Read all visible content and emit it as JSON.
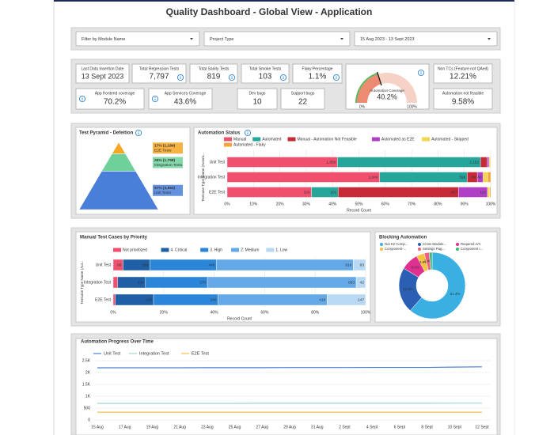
{
  "header": {
    "title": "Quality Dashboard - Global View - Application"
  },
  "filters": [
    "Filter by Module Name",
    "Project Type",
    "15 Aug 2023 - 13 Sept 2023"
  ],
  "kpis": [
    {
      "label": "Last Data Insertion Date",
      "value": "13 Sept 2023"
    },
    {
      "label": "Total Regression Tests",
      "value": "7,797"
    },
    {
      "label": "Total Sanity Tests",
      "value": "819"
    },
    {
      "label": "Total Smoke Tests",
      "value": "103"
    },
    {
      "label": "Flaky Percentage",
      "value": "1.1%"
    },
    {
      "label": "Non TCs (Feature not QAed)",
      "value": "12.21%"
    },
    {
      "label": "App frontend coverage",
      "value": "70.2%"
    },
    {
      "label": "App Services Coverage",
      "value": "43.6%"
    },
    {
      "label": "Dev bugs",
      "value": "10"
    },
    {
      "label": "Support bugs",
      "value": "22"
    },
    {
      "label": "Automation not feasible",
      "value": "9.58%"
    }
  ],
  "chart_data": [
    {
      "type": "gauge",
      "title": "Automation Coverage",
      "value": 40.2,
      "value_label": "40.2%",
      "ylim": [
        0,
        100
      ],
      "ticks": [
        {
          "value": 0,
          "label": "0%"
        },
        {
          "value": 100,
          "label": "100%"
        }
      ],
      "color": "#ec8a72",
      "track_color": "#f6d2c6"
    },
    {
      "type": "pyramid",
      "title": "Test Pyramid - Defeition",
      "categories": [
        "E2E Tests",
        "Integration Tests",
        "Unit Tests"
      ],
      "values": [
        1184,
        1798,
        3964
      ],
      "value_labels": [
        "17% (1,184)",
        "26% (1,798)",
        "57% (3,964)"
      ],
      "colors": [
        "#f5a623",
        "#6fd19a",
        "#4a7fd9"
      ]
    },
    {
      "type": "bar",
      "title": "Automation Status",
      "stacked": "percent",
      "y_label": "Testcase Type Name (Autom...",
      "x_label": "Record Count",
      "categories": [
        "Unit Test",
        "Integration Test",
        "E2E Test"
      ],
      "series": [
        {
          "name": "Manual",
          "color": "#f0506e",
          "values": [
            1659,
            1040,
            320
          ],
          "value_labels": [
            "1,659",
            "1,040",
            "320"
          ]
        },
        {
          "name": "Automated",
          "color": "#26a69a",
          "values": [
            2152,
            598,
            101
          ],
          "value_labels": [
            "2,152",
            "598",
            "101"
          ]
        },
        {
          "name": "Manual - Automation Not Feasible",
          "color": "#c62a36",
          "values": [
            98,
            69,
            457
          ],
          "value_labels": [
            null,
            "69",
            "457"
          ]
        },
        {
          "name": "Automated as E2E",
          "color": "#b13fc6",
          "values": [
            30,
            40,
            110
          ],
          "value_labels": [
            null,
            "40",
            "110"
          ]
        },
        {
          "name": "Automated - Skipped",
          "color": "#f2d64b",
          "values": [
            15,
            30,
            8
          ],
          "value_labels": [
            null,
            null,
            null
          ]
        },
        {
          "name": "Automated - Flaky",
          "color": "#f4a43a",
          "values": [
            10,
            21,
            4
          ],
          "value_labels": [
            null,
            null,
            null
          ]
        }
      ],
      "xlim": [
        0,
        100
      ],
      "xticks": [
        {
          "value": 0,
          "label": "0%"
        },
        {
          "value": 10,
          "label": "10%"
        },
        {
          "value": 20,
          "label": "20%"
        },
        {
          "value": 30,
          "label": "30%"
        },
        {
          "value": 40,
          "label": "40%"
        },
        {
          "value": 50,
          "label": "50%"
        },
        {
          "value": 60,
          "label": "60%"
        },
        {
          "value": 70,
          "label": "70%"
        },
        {
          "value": 80,
          "label": "80%"
        },
        {
          "value": 90,
          "label": "90%"
        },
        {
          "value": 100,
          "label": "100%"
        }
      ],
      "grid": true
    },
    {
      "type": "bar",
      "title": "Manual Test Cases by Priority",
      "stacked": "percent",
      "y_label": "Testcase Type Name (Aut...",
      "x_label": "Record Count",
      "categories": [
        "Unit Test",
        "Integration Test",
        "E2E Test"
      ],
      "series": [
        {
          "name": "Not prioritized",
          "color": "#f0506e",
          "values": [
            66,
            20,
            8
          ],
          "value_labels": [
            "66",
            null,
            null
          ]
        },
        {
          "name": "4. Critical",
          "color": "#1f5fa6",
          "values": [
            180,
            124,
            146
          ],
          "value_labels": [
            "180",
            "124",
            "146"
          ]
        },
        {
          "name": "3. High",
          "color": "#2b86d9",
          "values": [
            446,
            276,
            246
          ],
          "value_labels": [
            "446",
            "276",
            "246"
          ]
        },
        {
          "name": "2. Medium",
          "color": "#64a8e8",
          "values": [
            916,
            663,
            416
          ],
          "value_labels": [
            "916",
            "663",
            "416"
          ]
        },
        {
          "name": "1. Low",
          "color": "#b8d9f3",
          "values": [
            83,
            42,
            147
          ],
          "value_labels": [
            "83",
            "42",
            "147"
          ]
        }
      ],
      "xlim": [
        0,
        100
      ],
      "xticks": [
        {
          "value": 0,
          "label": "0%"
        },
        {
          "value": 20,
          "label": "20%"
        },
        {
          "value": 40,
          "label": "40%"
        },
        {
          "value": 60,
          "label": "60%"
        },
        {
          "value": 80,
          "label": "80%"
        },
        {
          "value": 100,
          "label": "100%"
        }
      ],
      "grid": true
    },
    {
      "type": "donut",
      "title": "Blocking Automation",
      "categories": [
        "Not K2 Comp...",
        "Cross Module...",
        "Required A/C",
        "Component-...",
        "Settings Pag...",
        "Component I..."
      ],
      "values": [
        61.4,
        22.3,
        8.6,
        3.9,
        2.4,
        1.4
      ],
      "value_labels": [
        "61.4%",
        "22.3%",
        "8.6%",
        "3.9%",
        "2.4%",
        null
      ],
      "colors": [
        "#3ab0e2",
        "#2b5fb4",
        "#e0308f",
        "#f5c242",
        "#f06080",
        "#3db874"
      ]
    },
    {
      "type": "line",
      "title": "Automation Progress Over Time",
      "x": [
        "15 Aug",
        "17 Aug",
        "19 Aug",
        "21 Aug",
        "23 Aug",
        "25 Aug",
        "27 Aug",
        "29 Aug",
        "31 Aug",
        "2 Sept",
        "4 Sept",
        "6 Sept",
        "8 Sept",
        "10 Sept",
        "12 Sept"
      ],
      "series": [
        {
          "name": "Unit Test",
          "color": "#4a7fd9",
          "values": [
            2200,
            2200,
            2200,
            2200,
            2205,
            2205,
            2205,
            2210,
            2210,
            2210,
            2215,
            2215,
            2215,
            2230,
            2240
          ]
        },
        {
          "name": "Integration Test",
          "color": "#9fd6cf",
          "values": [
            700,
            700,
            700,
            700,
            700,
            700,
            705,
            705,
            705,
            705,
            705,
            705,
            705,
            710,
            710
          ]
        },
        {
          "name": "E2E Test",
          "color": "#f2c14e",
          "values": [
            330,
            330,
            330,
            330,
            330,
            330,
            330,
            330,
            330,
            330,
            330,
            330,
            330,
            330,
            330
          ]
        }
      ],
      "ylim": [
        0,
        2500
      ],
      "yticks": [
        0,
        500,
        {
          "value": 1000,
          "label": "1K"
        },
        {
          "value": 1500,
          "label": "1.5K"
        },
        {
          "value": 2000,
          "label": "2K"
        },
        {
          "value": 2500,
          "label": "2.5K"
        }
      ],
      "grid": true
    }
  ]
}
